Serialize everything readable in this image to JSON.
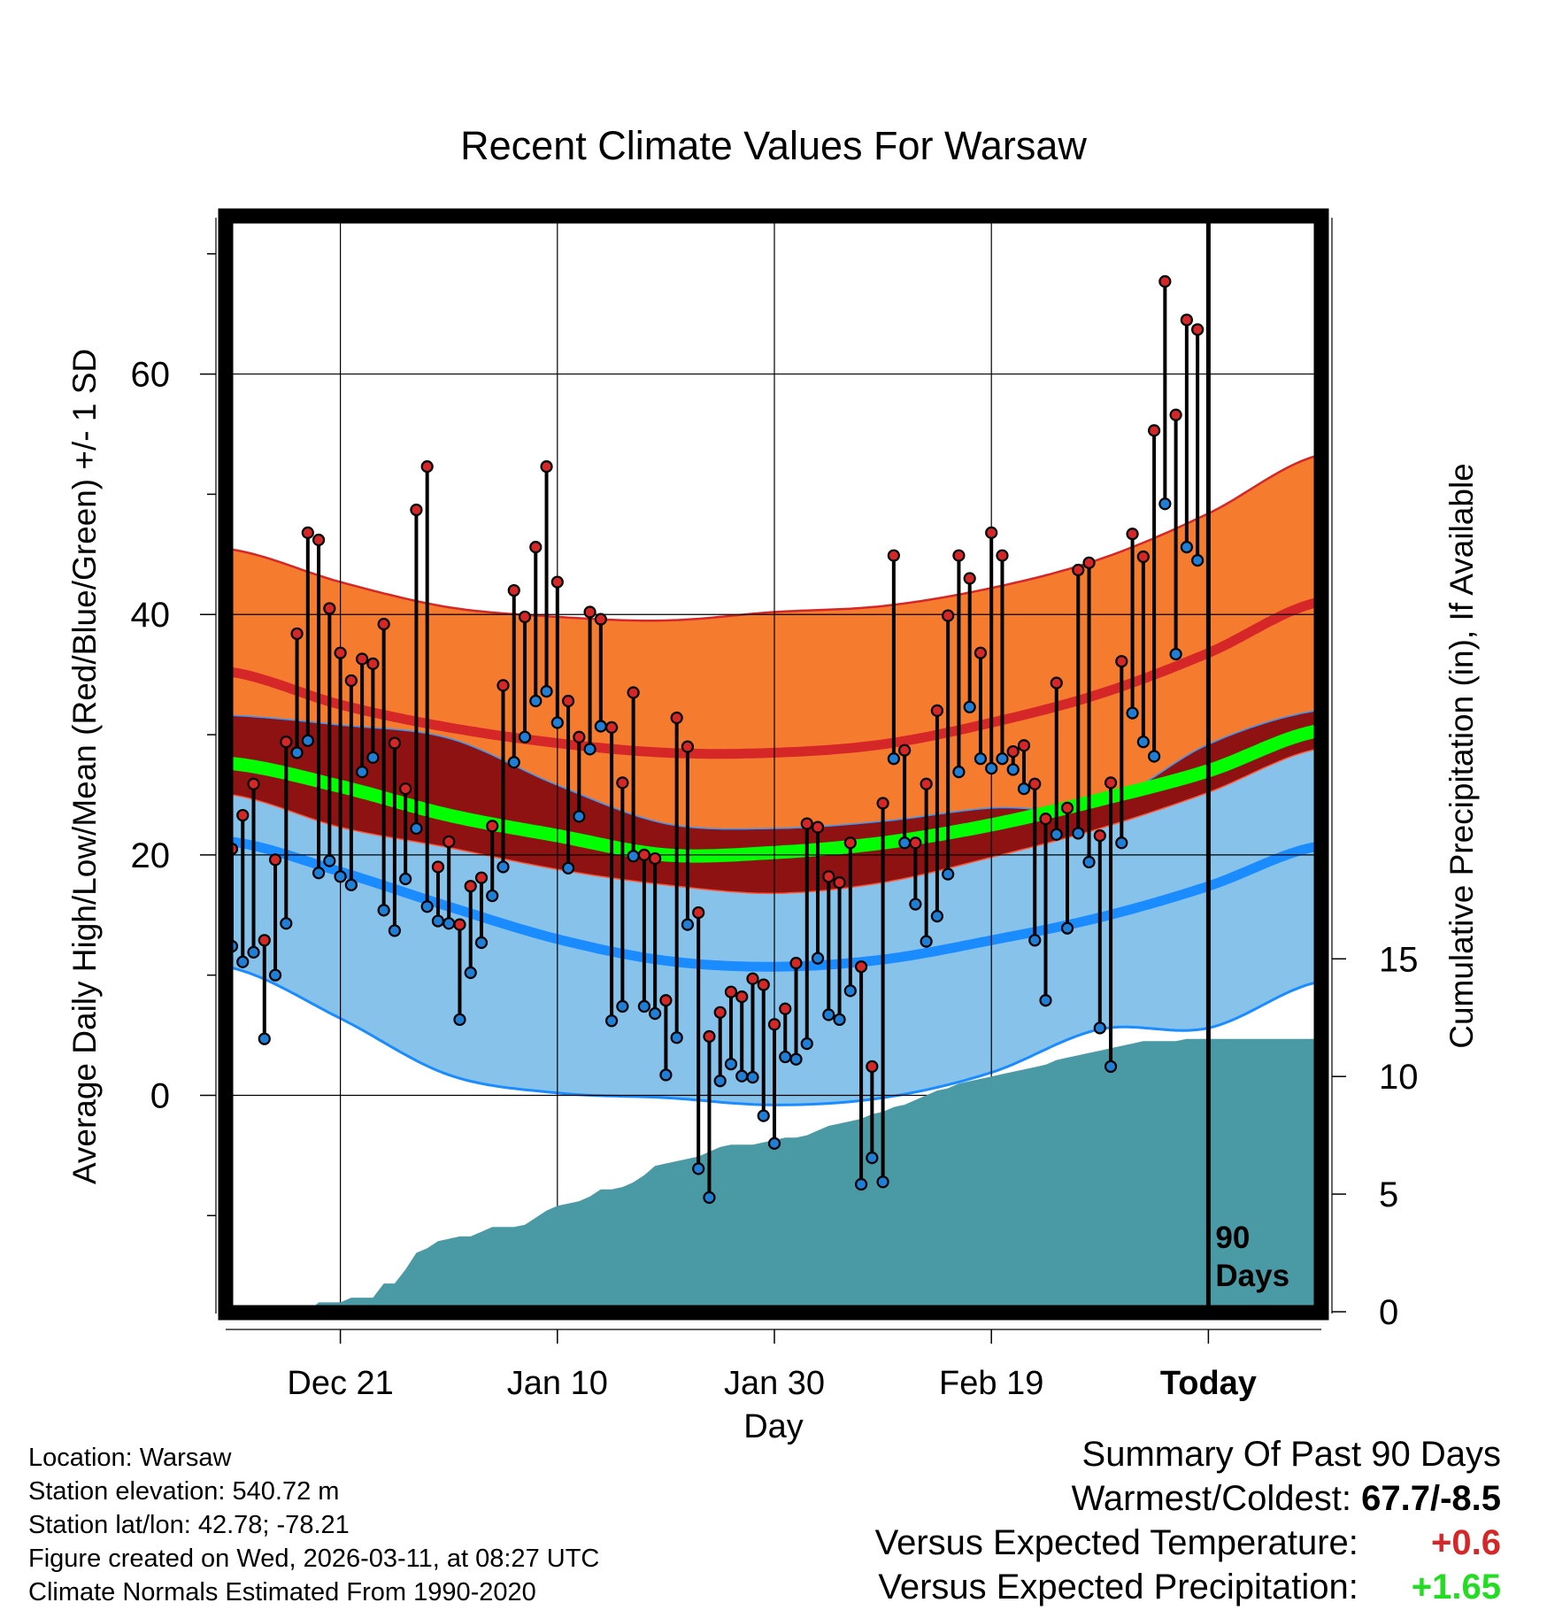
{
  "chart_data": {
    "type": "line",
    "title": "Recent Climate Values For Warsaw",
    "xlabel": "Day",
    "ylabel": "Average Daily High/Low/Mean (Red/Blue/Green) +/- 1 SD",
    "y2label": "Cumulative Precipitation (in), If Available",
    "xlim": [
      -10,
      90
    ],
    "ylim": [
      -18,
      73
    ],
    "y2lim": [
      0,
      46.5
    ],
    "x_ticks": [
      {
        "x": 0,
        "label": "Dec 21"
      },
      {
        "x": 20,
        "label": "Jan 10"
      },
      {
        "x": 40,
        "label": "Jan 30"
      },
      {
        "x": 60,
        "label": "Feb 19"
      },
      {
        "x": 80,
        "label": "Today"
      }
    ],
    "y_ticks": [
      0,
      20,
      40,
      60
    ],
    "y2_ticks": [
      0,
      5,
      10,
      15
    ],
    "today_x": 80,
    "today_label": [
      "90",
      "Days"
    ],
    "normals": {
      "x": [
        -10,
        0,
        10,
        20,
        30,
        40,
        50,
        60,
        70,
        80,
        90
      ],
      "high_mean": [
        35.2,
        32.5,
        30.6,
        29.3,
        28.5,
        28.5,
        29.2,
        31.0,
        33.4,
        36.8,
        41.0
      ],
      "high_sd": [
        10.2,
        10.2,
        10.0,
        10.5,
        11.0,
        11.7,
        11.5,
        11.2,
        11.2,
        11.6,
        12.2
      ],
      "low_mean": [
        21.1,
        18.6,
        15.7,
        13.0,
        11.2,
        10.7,
        11.3,
        12.9,
        14.8,
        17.4,
        20.7
      ],
      "low_sd": [
        10.5,
        12.2,
        14.0,
        12.8,
        11.4,
        11.5,
        11.5,
        11.0,
        9.3,
        11.8,
        11.3
      ],
      "mean": [
        27.6,
        25.7,
        23.3,
        21.6,
        20.0,
        20.2,
        21.0,
        22.5,
        24.6,
        27.0,
        30.3
      ],
      "high_color": "#d62728",
      "high_band_color": "#f57b2e",
      "dark_band_color": "#8f1212",
      "mean_color": "#00ff00",
      "low_color": "#1a8cff",
      "low_band_color": "#86c2ea"
    },
    "daily": {
      "x": [
        -10,
        -9,
        -8,
        -7,
        -6,
        -5,
        -4,
        -3,
        -2,
        -1,
        0,
        1,
        2,
        3,
        4,
        5,
        6,
        7,
        8,
        9,
        10,
        11,
        12,
        13,
        14,
        15,
        16,
        17,
        18,
        19,
        20,
        21,
        22,
        23,
        24,
        25,
        26,
        27,
        28,
        29,
        30,
        31,
        32,
        33,
        34,
        35,
        36,
        37,
        38,
        39,
        40,
        41,
        42,
        43,
        44,
        45,
        46,
        47,
        48,
        49,
        50,
        51,
        52,
        53,
        54,
        55,
        56,
        57,
        58,
        59,
        60,
        61,
        62,
        63,
        64,
        65,
        66,
        67,
        68,
        69,
        70,
        71,
        72,
        73,
        74,
        75,
        76,
        77,
        78,
        79
      ],
      "high": [
        20.5,
        23.3,
        25.9,
        12.9,
        19.6,
        29.4,
        38.4,
        46.8,
        46.2,
        40.5,
        36.8,
        34.5,
        36.3,
        35.9,
        39.2,
        29.3,
        25.5,
        48.7,
        52.3,
        19.0,
        21.1,
        14.2,
        17.4,
        18.1,
        22.4,
        34.1,
        42.0,
        39.8,
        45.6,
        52.3,
        42.7,
        32.8,
        29.8,
        40.2,
        39.6,
        30.6,
        26.0,
        33.5,
        20.0,
        19.7,
        7.9,
        31.4,
        29.0,
        15.2,
        4.9,
        6.9,
        8.6,
        8.2,
        9.7,
        9.2,
        5.9,
        7.2,
        11.0,
        22.6,
        22.3,
        18.2,
        17.7,
        21.0,
        10.7,
        2.4,
        24.3,
        44.9,
        28.7,
        21.0,
        25.9,
        32.0,
        39.9,
        44.9,
        43.0,
        36.8,
        46.8,
        44.9,
        28.6,
        29.1,
        25.9,
        23.0,
        34.3,
        23.9,
        43.7,
        44.3,
        21.6,
        26.0,
        36.1,
        46.7,
        44.8,
        55.3,
        67.7,
        56.6,
        64.5,
        63.7
      ],
      "low": [
        12.4,
        11.1,
        11.9,
        4.7,
        10.0,
        14.3,
        28.5,
        29.5,
        18.5,
        19.5,
        18.2,
        17.5,
        26.9,
        28.1,
        15.4,
        13.7,
        18.0,
        22.2,
        15.7,
        14.5,
        14.3,
        6.3,
        10.2,
        12.7,
        16.6,
        19.0,
        27.7,
        29.8,
        32.8,
        33.6,
        31.0,
        18.9,
        23.2,
        28.8,
        30.7,
        6.2,
        7.4,
        19.9,
        7.4,
        6.8,
        1.7,
        4.8,
        14.2,
        -6.1,
        -8.5,
        1.2,
        2.6,
        1.6,
        1.5,
        -1.7,
        -4.0,
        3.2,
        3.0,
        4.3,
        11.4,
        6.7,
        6.3,
        8.7,
        -7.4,
        -5.2,
        -7.2,
        28.0,
        21.0,
        15.9,
        12.8,
        14.9,
        18.4,
        26.9,
        32.3,
        28.0,
        27.2,
        28.0,
        27.1,
        25.5,
        12.9,
        7.9,
        21.7,
        13.9,
        21.8,
        19.4,
        5.6,
        2.4,
        21.0,
        31.8,
        29.4,
        28.2,
        49.2,
        36.7,
        45.6,
        44.5
      ]
    },
    "precip": {
      "x": [
        -10,
        -9,
        -8,
        -7,
        -6,
        -5,
        -4,
        -3,
        -2,
        -1,
        0,
        1,
        2,
        3,
        4,
        5,
        6,
        7,
        8,
        9,
        10,
        11,
        12,
        13,
        14,
        15,
        16,
        17,
        18,
        19,
        20,
        21,
        22,
        23,
        24,
        25,
        26,
        27,
        28,
        29,
        30,
        31,
        32,
        33,
        34,
        35,
        36,
        37,
        38,
        39,
        40,
        41,
        42,
        43,
        44,
        45,
        46,
        47,
        48,
        49,
        50,
        51,
        52,
        53,
        54,
        55,
        56,
        57,
        58,
        59,
        60,
        61,
        62,
        63,
        64,
        65,
        66,
        67,
        68,
        69,
        70,
        71,
        72,
        73,
        74,
        75,
        76,
        77,
        78,
        79,
        90
      ],
      "cum": [
        0,
        0,
        0,
        0,
        0,
        0,
        0,
        0,
        0.4,
        0.4,
        0.4,
        0.6,
        0.6,
        0.6,
        1.2,
        1.2,
        1.8,
        2.5,
        2.7,
        3.0,
        3.1,
        3.2,
        3.2,
        3.4,
        3.6,
        3.6,
        3.6,
        3.7,
        4.0,
        4.3,
        4.5,
        4.6,
        4.7,
        4.9,
        5.2,
        5.2,
        5.3,
        5.5,
        5.8,
        6.2,
        6.3,
        6.4,
        6.5,
        6.6,
        6.8,
        7.0,
        7.1,
        7.1,
        7.1,
        7.2,
        7.3,
        7.4,
        7.4,
        7.5,
        7.7,
        7.9,
        8.0,
        8.1,
        8.2,
        8.4,
        8.5,
        8.7,
        8.8,
        9.0,
        9.2,
        9.4,
        9.5,
        9.7,
        9.8,
        9.9,
        10.0,
        10.1,
        10.2,
        10.3,
        10.4,
        10.5,
        10.7,
        10.8,
        10.9,
        11.0,
        11.1,
        11.2,
        11.3,
        11.4,
        11.5,
        11.5,
        11.5,
        11.5,
        11.6,
        11.6,
        11.6
      ],
      "color": "#4a9aa5"
    }
  },
  "footer": {
    "location": "Location: Warsaw",
    "elevation": "Station elevation: 540.72 m",
    "latlon": "Station lat/lon: 42.78; -78.21",
    "created": "Figure created on Wed, 2026-03-11, at 08:27 UTC",
    "normals": "Climate Normals Estimated From 1990-2020"
  },
  "summary": {
    "title": "Summary Of Past 90 Days",
    "warm_cold_label": "Warmest/Coldest:",
    "warm_cold_value": "67.7/-8.5",
    "temp_label": "Versus Expected Temperature:",
    "temp_value": "+0.6",
    "temp_color": "#d62728",
    "precip_label": "Versus Expected Precipitation:",
    "precip_value": "+1.65",
    "precip_color": "#22dd22"
  }
}
